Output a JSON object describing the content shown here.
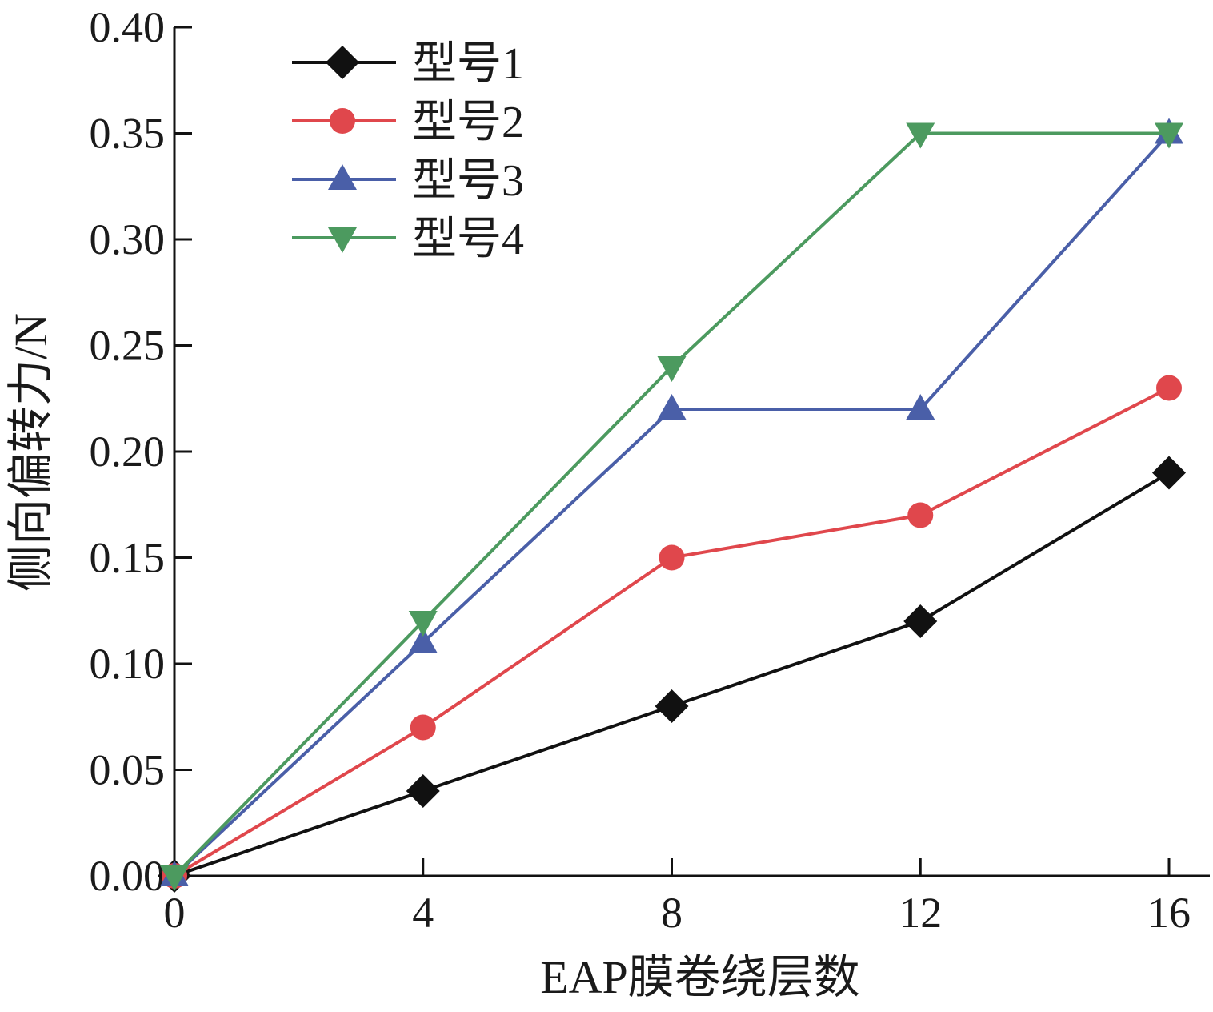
{
  "chart_data": {
    "type": "line",
    "xlabel": "EAP膜卷绕层数",
    "ylabel": "侧向偏转力/N",
    "x": [
      0,
      4,
      8,
      12,
      16
    ],
    "x_ticks": [
      "0",
      "4",
      "8",
      "12",
      "16"
    ],
    "y_ticks": [
      "0.00",
      "0.05",
      "0.10",
      "0.15",
      "0.20",
      "0.25",
      "0.30",
      "0.35",
      "0.40"
    ],
    "xlim": [
      0,
      16.7
    ],
    "ylim": [
      0,
      0.4
    ],
    "grid": false,
    "legend_position": "top-left",
    "series": [
      {
        "name": "型号1",
        "values": [
          0,
          0.04,
          0.08,
          0.12,
          0.19
        ],
        "color": "#111111",
        "marker": "diamond"
      },
      {
        "name": "型号2",
        "values": [
          0,
          0.07,
          0.15,
          0.17,
          0.23
        ],
        "color": "#e0474c",
        "marker": "circle"
      },
      {
        "name": "型号3",
        "values": [
          0,
          0.11,
          0.22,
          0.22,
          0.35
        ],
        "color": "#4a5fa8",
        "marker": "triangle-up"
      },
      {
        "name": "型号4",
        "values": [
          0,
          0.12,
          0.24,
          0.35,
          0.35
        ],
        "color": "#4c9a5f",
        "marker": "triangle-down"
      }
    ]
  }
}
